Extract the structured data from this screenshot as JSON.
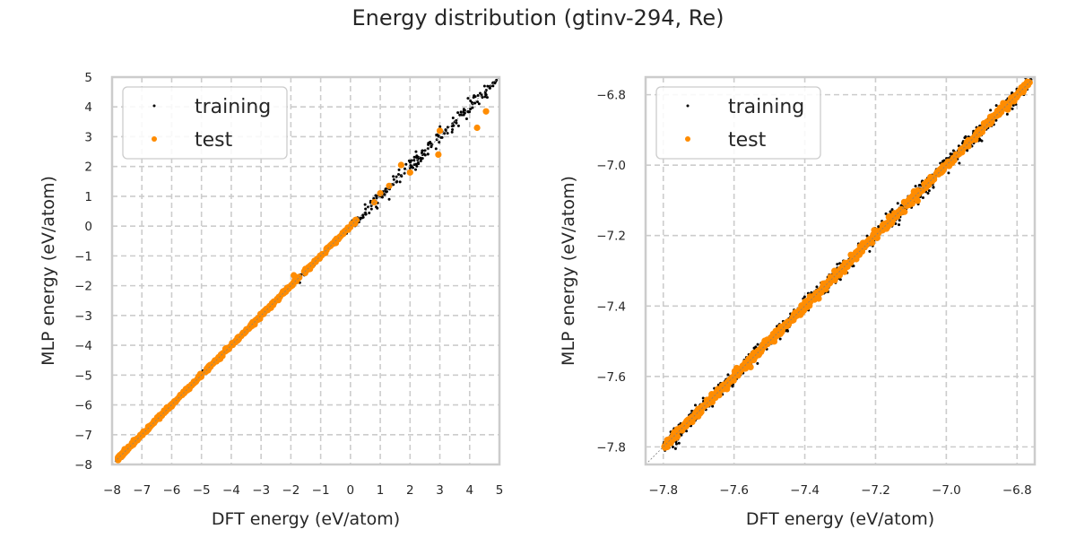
{
  "figure": {
    "title": "Energy distribution (gtinv-294, Re)"
  },
  "colors": {
    "training": "#000000",
    "test": "#ff8c00",
    "grid": "#cccccc",
    "frame": "#cccccc",
    "diagonal": "#808080"
  },
  "chart_data": [
    {
      "type": "scatter",
      "title": "",
      "xlabel": "DFT energy (eV/atom)",
      "ylabel": "MLP energy (eV/atom)",
      "xlim": [
        -8,
        5
      ],
      "ylim": [
        -8,
        5
      ],
      "xticks": [
        -8,
        -7,
        -6,
        -5,
        -4,
        -3,
        -2,
        -1,
        0,
        1,
        2,
        3,
        4,
        5
      ],
      "yticks": [
        -8,
        -7,
        -6,
        -5,
        -4,
        -3,
        -2,
        -1,
        0,
        1,
        2,
        3,
        4,
        5
      ],
      "xtick_labels": [
        "−8",
        "−7",
        "−6",
        "−5",
        "−4",
        "−3",
        "−2",
        "−1",
        "0",
        "1",
        "2",
        "3",
        "4",
        "5"
      ],
      "ytick_labels": [
        "−8",
        "−7",
        "−6",
        "−5",
        "−4",
        "−3",
        "−2",
        "−1",
        "0",
        "1",
        "2",
        "3",
        "4",
        "5"
      ],
      "grid": true,
      "legend": {
        "position": "top-left",
        "entries": [
          "training",
          "test"
        ]
      },
      "reference_line": "y = x",
      "series": [
        {
          "name": "training",
          "description": "dense points along y=x from -7.8 to 4.9, scatter grows above 0",
          "points": [
            [
              -7.8,
              -7.8
            ],
            [
              -7.5,
              -7.5
            ],
            [
              -7.2,
              -7.2
            ],
            [
              -6.9,
              -6.9
            ],
            [
              -6.5,
              -6.5
            ],
            [
              -6.1,
              -6.1
            ],
            [
              -5.7,
              -5.7
            ],
            [
              -5.3,
              -5.3
            ],
            [
              -4.9,
              -4.9
            ],
            [
              -4.5,
              -4.5
            ],
            [
              -4.2,
              -4.15
            ],
            [
              -3.9,
              -3.85
            ],
            [
              -3.6,
              -3.6
            ],
            [
              -3.3,
              -3.3
            ],
            [
              -3.0,
              -3.0
            ],
            [
              -2.7,
              -2.7
            ],
            [
              -2.4,
              -2.45
            ],
            [
              -2.1,
              -2.1
            ],
            [
              -1.8,
              -1.8
            ],
            [
              -1.5,
              -1.55
            ],
            [
              -1.2,
              -1.2
            ],
            [
              -0.9,
              -0.9
            ],
            [
              -0.6,
              -0.6
            ],
            [
              -0.3,
              -0.3
            ],
            [
              0.0,
              0.0
            ],
            [
              0.2,
              0.25
            ],
            [
              0.5,
              0.45
            ],
            [
              0.8,
              0.8
            ],
            [
              1.0,
              1.05
            ],
            [
              1.2,
              1.15
            ],
            [
              1.4,
              1.4
            ],
            [
              1.7,
              1.7
            ],
            [
              2.0,
              1.95
            ],
            [
              2.3,
              2.3
            ],
            [
              2.6,
              2.6
            ],
            [
              2.9,
              2.9
            ],
            [
              3.2,
              3.2
            ],
            [
              3.5,
              3.5
            ],
            [
              3.8,
              3.8
            ],
            [
              4.1,
              4.1
            ],
            [
              4.4,
              4.4
            ],
            [
              4.7,
              4.7
            ],
            [
              4.9,
              4.9
            ],
            [
              -1.7,
              -1.9
            ],
            [
              0.9,
              0.6
            ],
            [
              3.9,
              3.6
            ],
            [
              4.5,
              4.7
            ],
            [
              2.2,
              2.5
            ],
            [
              1.3,
              0.9
            ]
          ]
        },
        {
          "name": "test",
          "description": "points along y=x, a few outliers at high energy",
          "points": [
            [
              -7.8,
              -7.8
            ],
            [
              -7.4,
              -7.4
            ],
            [
              -7.0,
              -7.0
            ],
            [
              -6.6,
              -6.6
            ],
            [
              -6.2,
              -6.2
            ],
            [
              -5.8,
              -5.8
            ],
            [
              -5.4,
              -5.4
            ],
            [
              -5.0,
              -5.0
            ],
            [
              -4.6,
              -4.6
            ],
            [
              -4.2,
              -4.2
            ],
            [
              -3.8,
              -3.8
            ],
            [
              -3.2,
              -3.2
            ],
            [
              -2.8,
              -2.8
            ],
            [
              -2.2,
              -2.2
            ],
            [
              -1.8,
              -1.75
            ],
            [
              -1.3,
              -1.3
            ],
            [
              -0.6,
              -0.6
            ],
            [
              -0.1,
              -0.1
            ],
            [
              0.2,
              0.2
            ],
            [
              0.8,
              0.8
            ],
            [
              1.0,
              1.1
            ],
            [
              1.3,
              1.35
            ],
            [
              1.7,
              2.05
            ],
            [
              2.0,
              1.8
            ],
            [
              2.95,
              2.4
            ],
            [
              3.0,
              3.2
            ],
            [
              4.25,
              3.3
            ],
            [
              4.55,
              3.85
            ],
            [
              -1.9,
              -1.65
            ]
          ]
        }
      ]
    },
    {
      "type": "scatter",
      "title": "",
      "xlabel": "DFT energy (eV/atom)",
      "ylabel": "MLP energy (eV/atom)",
      "xlim": [
        -7.85,
        -6.75
      ],
      "ylim": [
        -7.85,
        -6.75
      ],
      "xticks": [
        -7.8,
        -7.6,
        -7.4,
        -7.2,
        -7.0,
        -6.8
      ],
      "yticks": [
        -7.8,
        -7.6,
        -7.4,
        -7.2,
        -7.0,
        -6.8
      ],
      "xtick_labels": [
        "−7.8",
        "−7.6",
        "−7.4",
        "−7.2",
        "−7.0",
        "−6.8"
      ],
      "ytick_labels": [
        "−7.8",
        "−7.6",
        "−7.4",
        "−7.2",
        "−7.0",
        "−6.8"
      ],
      "grid": true,
      "legend": {
        "position": "top-left",
        "entries": [
          "training",
          "test"
        ]
      },
      "reference_line": "y = x",
      "series": [
        {
          "name": "training",
          "description": "dense band along y=x from -7.8 to -6.76 with small spread",
          "spread": 0.012
        },
        {
          "name": "test",
          "description": "dense band along y=x from -7.8 to -6.76",
          "spread": 0.006
        }
      ]
    }
  ]
}
